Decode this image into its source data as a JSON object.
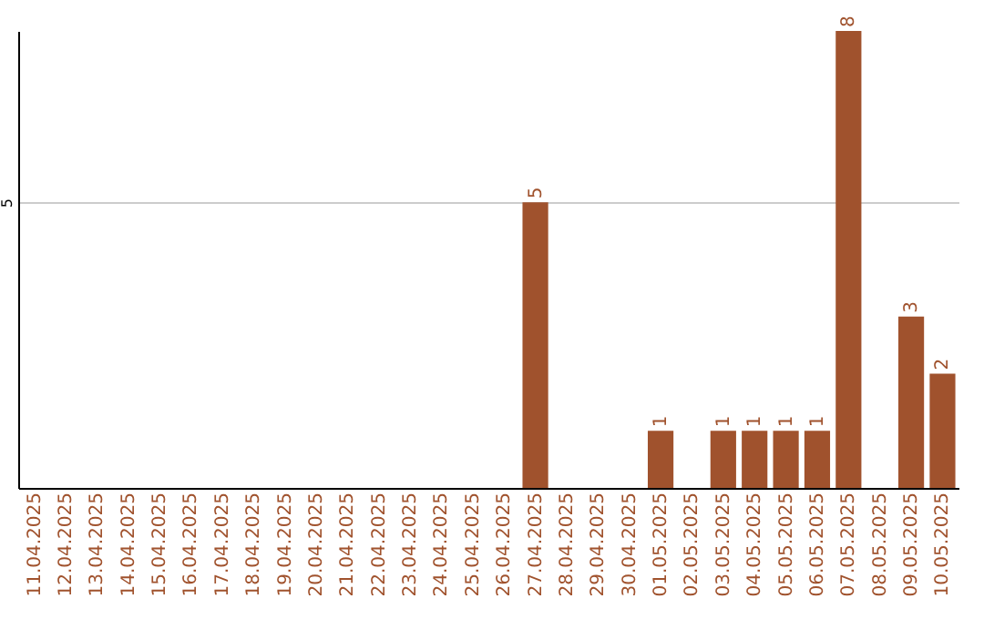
{
  "chart_data": {
    "type": "bar",
    "categories": [
      "11.04.2025",
      "12.04.2025",
      "13.04.2025",
      "14.04.2025",
      "15.04.2025",
      "16.04.2025",
      "17.04.2025",
      "18.04.2025",
      "19.04.2025",
      "20.04.2025",
      "21.04.2025",
      "22.04.2025",
      "23.04.2025",
      "24.04.2025",
      "25.04.2025",
      "26.04.2025",
      "27.04.2025",
      "28.04.2025",
      "29.04.2025",
      "30.04.2025",
      "01.05.2025",
      "02.05.2025",
      "03.05.2025",
      "04.05.2025",
      "05.05.2025",
      "06.05.2025",
      "07.05.2025",
      "08.05.2025",
      "09.05.2025",
      "10.05.2025"
    ],
    "values": [
      null,
      null,
      null,
      null,
      null,
      null,
      null,
      null,
      null,
      null,
      null,
      null,
      null,
      null,
      null,
      null,
      5,
      null,
      null,
      null,
      1,
      null,
      1,
      1,
      1,
      1,
      8,
      null,
      3,
      2
    ],
    "data_labels": true,
    "color": "#a0522d",
    "ylim": [
      0,
      8
    ],
    "yticks": [
      5
    ],
    "grid": "y"
  }
}
